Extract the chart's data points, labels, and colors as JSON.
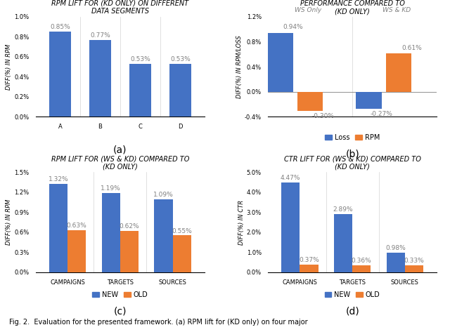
{
  "fig_caption": "Fig. 2.  Evaluation for the presented framework. (a) RPM lift for (KD only) on four major",
  "plot_a": {
    "title": "RPM LIFT FOR (KD ONLY) ON DIFFERENT\nDATA SEGMENTS",
    "categories": [
      "A",
      "B",
      "C",
      "D"
    ],
    "values": [
      0.85,
      0.77,
      0.53,
      0.53
    ],
    "labels": [
      "0.85%",
      "0.77%",
      "0.53%",
      "0.53%"
    ],
    "bar_color": "#4472C4",
    "ylabel": "DIFF(%) IN RPM",
    "ylim": [
      0.0,
      1.0
    ],
    "yticks": [
      0.0,
      0.2,
      0.4,
      0.6,
      0.8,
      1.0
    ],
    "ytick_labels": [
      "0.0%",
      "0.2%",
      "0.4%",
      "0.6%",
      "0.8%",
      "1.0%"
    ],
    "sublabel": "(a)"
  },
  "plot_b": {
    "title": "PERFORMANCE COMPARED TO\n(KD ONLY)",
    "groups": [
      "WS Only",
      "WS & KD"
    ],
    "loss_values": [
      0.94,
      -0.27
    ],
    "rpm_values": [
      -0.3,
      0.61
    ],
    "loss_labels": [
      "0.94%",
      "-0.27%"
    ],
    "rpm_labels": [
      "-0.30%",
      "0.61%"
    ],
    "loss_color": "#4472C4",
    "rpm_color": "#ED7D31",
    "ylabel": "DIFF(%) IN RPM/LOSS",
    "ylim": [
      -0.4,
      1.2
    ],
    "yticks": [
      -0.4,
      0.0,
      0.4,
      0.8,
      1.2
    ],
    "ytick_labels": [
      "-0.4%",
      "0.0%",
      "0.4%",
      "0.8%",
      "1.2%"
    ],
    "sublabel": "(b)"
  },
  "plot_c": {
    "title": "RPM LIFT FOR (WS & KD) COMPARED TO\n(KD ONLY)",
    "categories": [
      "CAMPAIGNS",
      "TARGETS",
      "SOURCES"
    ],
    "new_values": [
      1.32,
      1.19,
      1.09
    ],
    "old_values": [
      0.63,
      0.62,
      0.55
    ],
    "new_labels": [
      "1.32%",
      "1.19%",
      "1.09%"
    ],
    "old_labels": [
      "0.63%",
      "0.62%",
      "0.55%"
    ],
    "new_color": "#4472C4",
    "old_color": "#ED7D31",
    "ylabel": "DIFF(%) IN RPM",
    "ylim": [
      0.0,
      1.5
    ],
    "yticks": [
      0.0,
      0.3,
      0.6,
      0.9,
      1.2,
      1.5
    ],
    "ytick_labels": [
      "0.0%",
      "0.3%",
      "0.6%",
      "0.9%",
      "1.2%",
      "1.5%"
    ],
    "sublabel": "(c)"
  },
  "plot_d": {
    "title": "CTR LIFT FOR (WS & KD) COMPARED TO\n(KD ONLY)",
    "categories": [
      "CAMPAIGNS",
      "TARGETS",
      "SOURCES"
    ],
    "new_values": [
      4.47,
      2.89,
      0.98
    ],
    "old_values": [
      0.37,
      0.36,
      0.33
    ],
    "new_labels": [
      "4.47%",
      "2.89%",
      "0.98%"
    ],
    "old_labels": [
      "0.37%",
      "0.36%",
      "0.33%"
    ],
    "new_color": "#4472C4",
    "old_color": "#ED7D31",
    "ylabel": "DIFF(%) IN CTR",
    "ylim": [
      0.0,
      5.0
    ],
    "yticks": [
      0.0,
      1.0,
      2.0,
      3.0,
      4.0,
      5.0
    ],
    "ytick_labels": [
      "0.0%",
      "1.0%",
      "2.0%",
      "3.0%",
      "4.0%",
      "5.0%"
    ],
    "sublabel": "(d)"
  },
  "background_color": "#ffffff",
  "bar_color_blue": "#4472C4",
  "bar_color_orange": "#ED7D31",
  "label_fontsize": 6.5,
  "title_fontsize": 7,
  "tick_fontsize": 6,
  "ylabel_fontsize": 6,
  "legend_fontsize": 7,
  "sublabel_fontsize": 10,
  "caption_fontsize": 7
}
